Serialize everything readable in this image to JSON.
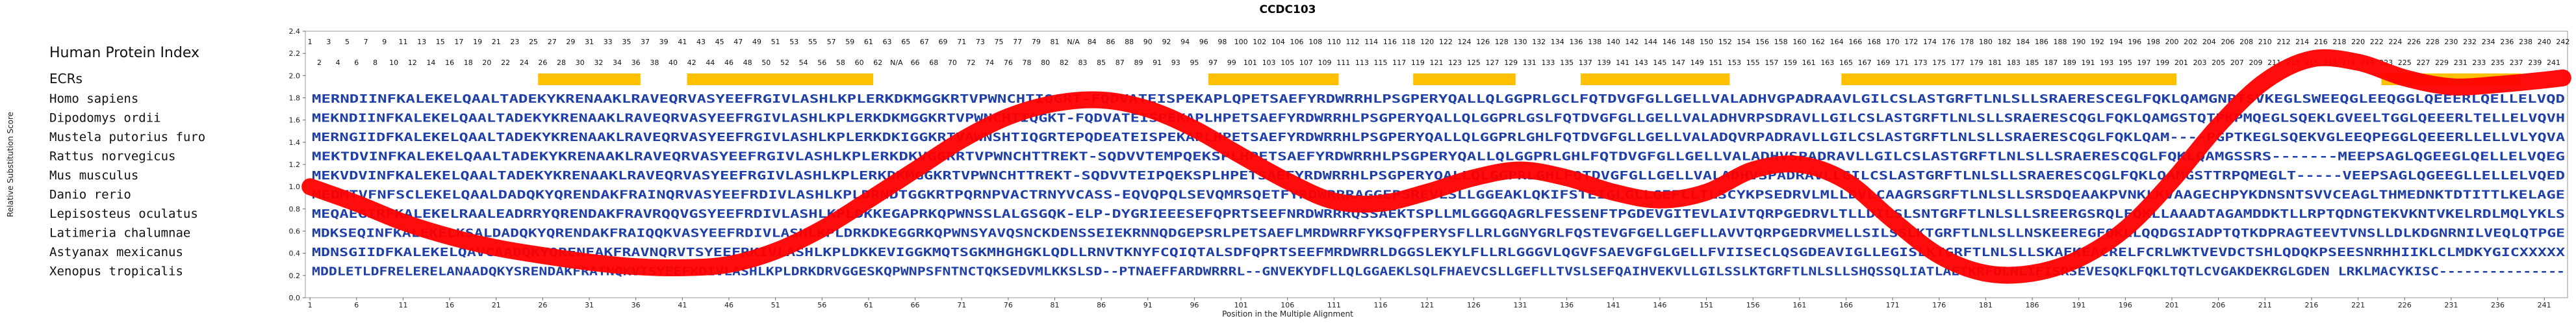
{
  "chart_data": {
    "type": "line",
    "title": "CCDC103",
    "xlabel": "Position in the Multiple Alignment",
    "ylabel": "Relative Substitution Score",
    "ylim": [
      0,
      2.4
    ],
    "y_ticks": [
      "0.0",
      "0.2",
      "0.4",
      "0.6",
      "0.8",
      "1.0",
      "1.2",
      "1.4",
      "1.6",
      "1.8",
      "2.0",
      "2.2",
      "2.4"
    ],
    "x_ticks": [
      "1",
      "6",
      "11",
      "16",
      "21",
      "26",
      "31",
      "36",
      "41",
      "46",
      "51",
      "56",
      "61",
      "66",
      "71",
      "76",
      "81",
      "86",
      "91",
      "96",
      "101",
      "106",
      "111",
      "116",
      "121",
      "126",
      "131",
      "136",
      "141",
      "146",
      "151",
      "156",
      "161",
      "166",
      "171",
      "176",
      "181",
      "186",
      "191",
      "196",
      "201",
      "206",
      "211",
      "216",
      "221",
      "226",
      "231",
      "236",
      "241"
    ],
    "alignment_length": 243,
    "hpi_label": "Human Protein Index",
    "hpi_row1": [
      "1",
      "3",
      "5",
      "7",
      "9",
      "11",
      "13",
      "15",
      "17",
      "19",
      "21",
      "23",
      "25",
      "27",
      "29",
      "31",
      "33",
      "35",
      "37",
      "39",
      "41",
      "43",
      "45",
      "47",
      "49",
      "51",
      "53",
      "55",
      "57",
      "59",
      "61",
      "63",
      "65",
      "67",
      "69",
      "71",
      "73",
      "75",
      "77",
      "79",
      "81",
      "N/A",
      "84",
      "86",
      "88",
      "90",
      "92",
      "94",
      "96",
      "98",
      "100",
      "102",
      "104",
      "106",
      "108",
      "110",
      "112",
      "114",
      "116",
      "118",
      "120",
      "122",
      "124",
      "126",
      "128",
      "130",
      "132",
      "134",
      "136",
      "138",
      "140",
      "142",
      "144",
      "146",
      "148",
      "150",
      "152",
      "154",
      "156",
      "158",
      "160",
      "162",
      "164",
      "166",
      "168",
      "170",
      "172",
      "174",
      "176",
      "178",
      "180",
      "182",
      "184",
      "186",
      "188",
      "190",
      "192",
      "194",
      "196",
      "198",
      "200",
      "202",
      "204",
      "206",
      "208",
      "210",
      "212",
      "214",
      "216",
      "218",
      "220",
      "222",
      "224",
      "226",
      "228",
      "230",
      "232",
      "234",
      "236",
      "238",
      "240",
      "242"
    ],
    "hpi_row2": [
      "2",
      "4",
      "6",
      "8",
      "10",
      "12",
      "14",
      "16",
      "18",
      "20",
      "22",
      "24",
      "26",
      "28",
      "30",
      "32",
      "34",
      "36",
      "38",
      "40",
      "42",
      "44",
      "46",
      "48",
      "50",
      "52",
      "54",
      "56",
      "58",
      "60",
      "62",
      "N/A",
      "66",
      "68",
      "70",
      "72",
      "74",
      "76",
      "78",
      "80",
      "82",
      "83",
      "85",
      "87",
      "89",
      "91",
      "93",
      "95",
      "97",
      "99",
      "101",
      "103",
      "105",
      "107",
      "109",
      "111",
      "113",
      "115",
      "117",
      "119",
      "121",
      "123",
      "125",
      "127",
      "129",
      "131",
      "133",
      "135",
      "137",
      "139",
      "141",
      "143",
      "145",
      "147",
      "149",
      "151",
      "153",
      "155",
      "157",
      "159",
      "161",
      "163",
      "165",
      "167",
      "169",
      "171",
      "173",
      "175",
      "177",
      "179",
      "181",
      "183",
      "185",
      "187",
      "189",
      "191",
      "193",
      "195",
      "197",
      "199",
      "201",
      "203",
      "205",
      "207",
      "209",
      "211",
      "213",
      "215",
      "217",
      "219",
      "221",
      "223",
      "225",
      "227",
      "229",
      "231",
      "233",
      "235",
      "237",
      "239",
      "241"
    ],
    "ecrs_label": "ECRs",
    "ecrs": [
      [
        26,
        36
      ],
      [
        42,
        61
      ],
      [
        98,
        111
      ],
      [
        120,
        130
      ],
      [
        138,
        153
      ],
      [
        166,
        201
      ],
      [
        224,
        238
      ]
    ],
    "series": [
      {
        "color": "#ff0000",
        "x": [
          1,
          6,
          11,
          16,
          21,
          26,
          31,
          36,
          41,
          46,
          51,
          56,
          61,
          66,
          71,
          76,
          81,
          86,
          91,
          96,
          101,
          106,
          111,
          116,
          121,
          126,
          131,
          136,
          141,
          146,
          151,
          156,
          161,
          166,
          171,
          176,
          181,
          186,
          191,
          196,
          201,
          206,
          211,
          216,
          221,
          226,
          231,
          236,
          241,
          243
        ],
        "y": [
          1.0,
          0.85,
          0.68,
          0.55,
          0.45,
          0.38,
          0.32,
          0.28,
          0.27,
          0.3,
          0.42,
          0.62,
          0.88,
          1.15,
          1.42,
          1.63,
          1.75,
          1.78,
          1.7,
          1.52,
          1.28,
          1.05,
          0.87,
          0.85,
          0.95,
          1.08,
          1.15,
          1.08,
          0.95,
          0.88,
          0.95,
          1.15,
          1.2,
          1.05,
          0.7,
          0.38,
          0.22,
          0.22,
          0.35,
          0.62,
          1.05,
          1.55,
          1.95,
          2.15,
          2.12,
          1.98,
          1.9,
          1.92,
          1.96,
          1.98
        ]
      }
    ],
    "sequences": [
      {
        "species": "Homo sapiens",
        "seq": "MERNDIINFKALEKELQAALTADEKYKRENAAKLRAVEQRVASYEEFRGIVLASHLKPLERKDKMGGKRTVPWNCHTIQGRT-FQDVATEISPEKAPLQPETSAEFYRDWRRHLPSGPERYQALLQLGGPRLGCLFQTDVGFGLLGELLVALADHVGPADRAAVLGILCSLASTGRFTLNLSLLSRAERESCEGLFQKLQAMGNPTSVKEGLSWEEQGLEEQGGLQEEERLQELLELVQD"
      },
      {
        "species": "Dipodomys ordii",
        "seq": "MEKNDIINFKALEKELQAALTADEKYKRENAAKLRAVEQRVASYEEFRGIVLASHLKPLERKDKMGGKRTVPWNCHTIQGKT-FQDVATEISPEKAPLHPETSAEFYRDWRRHLPSGPERYQALLQLGGPRLGSLFQTDVGFGLLGELLVALADHVRPSDRAVLLGILCSLASTGRFTLNLSLLSRAERESCQGLFQKLQAMGSTQTPKPMQEGLSQEKLGVEELTGGLQEEERLTELLELVQVH"
      },
      {
        "species": "Mustela putorius furo",
        "seq": "MERNGIIDFKALEKELQAALTADEKYKRENAAKLRAVEQRVASYEEFRGIVLASHLKPLERKDKIGGKRTVAWNSHTIQGRTEPQDEATEISPEKAPLHPETSAEFYRDWRRHLPSGPERYQALLQLGGPRLGHLFQTDVGFGLLGELLVALADQVRPADRAVLLGILCSLASTGRFTLNLSLLSRAERESCQGLFQKLQAM----PGPTKEGLSQEKVGLEEQPEGGLQEEERLLELLVLYQVA"
      },
      {
        "species": "Rattus norvegicus",
        "seq": "MEKTDVINFKALEKELQAALTADEKYKRENAAKLRAVEQRVASYEEFRGIVLASHLKPLERKDKVGGRRTVPWNCHTTREKT-SQDVVTEMPQEKSPLHPETSAEFYRDWRRHLPSGPERYQALLQLGGPRLGHLFQTDVGFGLLGELLVALADHVSPADRAVLLGILCSLASTGRFTLNLSLLSRAERESCQGLFQKLQAMGSSRS-------MEEPSAGLQGEEGLQELLELVQEG"
      },
      {
        "species": "Mus musculus",
        "seq": "MEKVDVINFKALEKELQAALTADEKYKRENAAKLRAVEQRVASYEEFRGIVLASHLKPLERKDKMGGKRTVPWNCHTTREKT-SQDVVTEIPQEKSPLHPETSAEFYRDWRRHLPSGPERYQALLQLGGPRLGHLFQTDVGFGLLGELLVALADHVSPADRAVLLGILCSLASTGRFTLNLSLLSRAERESCQGLFQKLQAMGSTTRPQMEGLT-----VEEPSAGLQGEEGLLELLELVQED"
      },
      {
        "species": "Danio rerio",
        "seq": "MEDMTVFNFSCLEKELQAALDADQKYQRENDAKFRAINQRVASYEEFRDIVLASHLKPLDRNDTGGKRTPQRNPVACTRNYVCASS-EQVQPQLSEVQMRSQETFYRDWRRRAGGEPSREVLSLLGGEAKLQKIFSTEIGLGLLGEFLLTLSCYKPSEDRVLMLLDVLCAAGRSGRFTLNLSLLSRSDQEAAKPVNKLKVAAGECHPYKDNSNTSVVCEAGLTHMEDNKTDTITTLKELAGE"
      },
      {
        "species": "Lepisosteus oculatus",
        "seq": "MEQAEGIRFKALEKELRAALEADRRYQRENDAKFRAVRQQVGSYEEFRDIVLASHLKPLDKKEGAPRKQPWNSSLALGSGQK-ELP-DYGRIEEESEFQPRTSEEFNRDWRRRQSSAEKTSPLLMLGGGQAGRLFESSENFTPGDEVGITEVLAIVTQRPGEDRVLTLLDILSLSNTGRFTLNLSLLSREERGSRQLFQKLLAAADTAGAMDDKTLLRPTQDNGTEKVKNTVKELRDLMQLYKLS"
      },
      {
        "species": "Latimeria chalumnae",
        "seq": "MDKSEQINFKALEKELKSALDADQKYQRENDAKFRAIQQKVASYEEFRDIVLASHLKPLDRKDKEGGRKQPWNSYAVQSNCKDENSSEIEKRNNQDGEPSRLPETSAEFLMRDWRRFYKSQFPERYSFLLRLGGNYGRLFQSTEVGFGELLGEFLLAVVTQRPGEDRVMELLSILSSLKTGRFTLNLSLLNSKEEREGFQKLLQQDGSIADPTQTKDPRAGTEEVTVNSLLDLKDGNRNILVEQLQTPGE"
      },
      {
        "species": "Astyanax mexicanus",
        "seq": "MDNSGIIDFKALEKELQAVCAADQKYQRENEAKFRAVNQRVTSYEEFRKIVLASHLKPLDKKEVIGGKMQTSGKMHGHGKLQDLLRNVTKNYFCQIQTALSDFQPRTSEEFMRDWRRLDGGSLEKYLFLLRLGGGVLQGVFSAEVGFGLGELLFVIISECLQSGDEAVIGLLEGISLKTGRFTLNLSLLSKAEKEACRELFCRLWKTVEVDCTSHLQDQKPSEESNRHHIIKLCLMDKYGICXXXXX"
      },
      {
        "species": "Xenopus tropicalis",
        "seq": "MDDLETLDFRELERELANAADQKYSRENDAKFRATNQKVTSYEEFKDIVLASHLKPLDRKDRVGGESKQPWNPSFNTNCTQKSEDVMLKKSLSD--PTNAEFFARDWRRRL--GNVEKYDFLLQLGGAEKLSQLFHAEVCSLLGEFLLTVSLSEFQAIHVEKVLLGILSSLKTGRFTLNLSLLSHQSSQLIATLAETKRFDLNLIFISRSEVESQKLFQKLTQTLCVGAKDEKRGLGDEN LRKLMACYKISC---------------"
      }
    ]
  }
}
